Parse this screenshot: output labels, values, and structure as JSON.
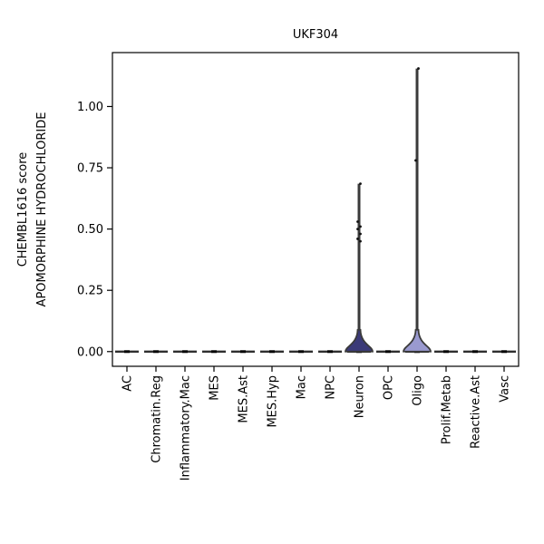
{
  "chart_data": {
    "type": "violin",
    "title": "UKF304",
    "ylabel_line1": "CHEMBL1616 score",
    "ylabel_line2": "APOMORPHINE HYDROCHLORIDE",
    "xlabel": "",
    "ylim": [
      -0.06,
      1.22
    ],
    "yticks": [
      0.0,
      0.25,
      0.5,
      0.75,
      1.0
    ],
    "ytick_labels": [
      "0.00",
      "0.25",
      "0.50",
      "0.75",
      "1.00"
    ],
    "categories": [
      "AC",
      "Chromatin.Reg",
      "Inflammatory.Mac",
      "MES",
      "MES.Ast",
      "MES.Hyp",
      "Mac",
      "NPC",
      "Neuron",
      "OPC",
      "Oligo",
      "Prolif.Metab",
      "Reactive.Ast",
      "Vasc"
    ],
    "colors": {
      "violin_fill": "#3b3a78",
      "violin_fill_light": "#9a9ad0",
      "violin_edge": "#3a3a3a",
      "point": "#111111",
      "zero_band": "#2e2e2e"
    },
    "violins": [
      {
        "category": "Neuron",
        "min": 0.0,
        "max": 0.685,
        "color_key": "violin_fill",
        "points": [
          0.685,
          0.53,
          0.51,
          0.5,
          0.48,
          0.46,
          0.45
        ]
      },
      {
        "category": "Oligo",
        "min": 0.0,
        "max": 1.155,
        "color_key": "violin_fill_light",
        "points": [
          1.155,
          0.78
        ]
      }
    ],
    "grid": false,
    "legend": "none"
  }
}
